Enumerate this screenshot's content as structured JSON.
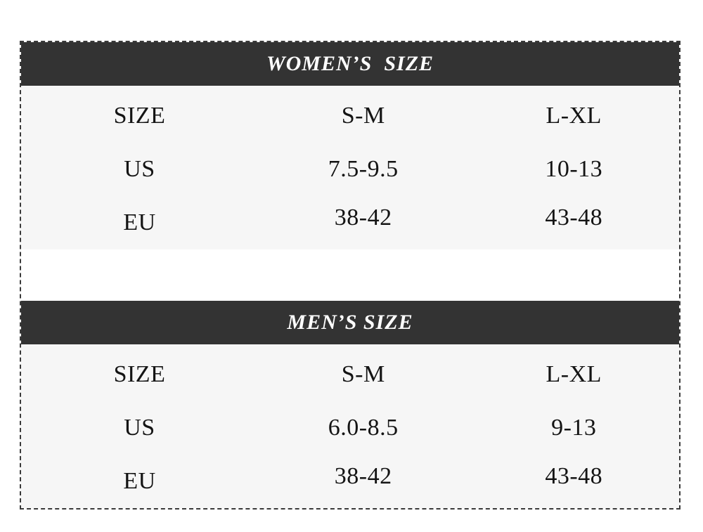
{
  "colors": {
    "page_bg": "#ffffff",
    "border": "#3a3a3a",
    "header_bg": "#333333",
    "header_text": "#ffffff",
    "body_bg": "#f6f6f6",
    "cell_text": "#141414"
  },
  "tables": [
    {
      "title": "WOMEN’S  SIZE",
      "rows": [
        {
          "label": "SIZE",
          "values": [
            "S-M",
            "L-XL"
          ]
        },
        {
          "label": "US",
          "values": [
            "7.5-9.5",
            "10-13"
          ]
        },
        {
          "label": "EU",
          "values": [
            "38-42",
            "43-48"
          ]
        }
      ]
    },
    {
      "title": "MEN’S SIZE",
      "rows": [
        {
          "label": "SIZE",
          "values": [
            "S-M",
            "L-XL"
          ]
        },
        {
          "label": "US",
          "values": [
            "6.0-8.5",
            "9-13"
          ]
        },
        {
          "label": "EU",
          "values": [
            "38-42",
            "43-48"
          ]
        }
      ]
    }
  ],
  "chart_data": [
    {
      "type": "table",
      "title": "WOMEN’S SIZE",
      "columns": [
        "SIZE",
        "S-M",
        "L-XL"
      ],
      "rows": [
        [
          "US",
          "7.5-9.5",
          "10-13"
        ],
        [
          "EU",
          "38-42",
          "43-48"
        ]
      ]
    },
    {
      "type": "table",
      "title": "MEN’S SIZE",
      "columns": [
        "SIZE",
        "S-M",
        "L-XL"
      ],
      "rows": [
        [
          "US",
          "6.0-8.5",
          "9-13"
        ],
        [
          "EU",
          "38-42",
          "43-48"
        ]
      ]
    }
  ]
}
